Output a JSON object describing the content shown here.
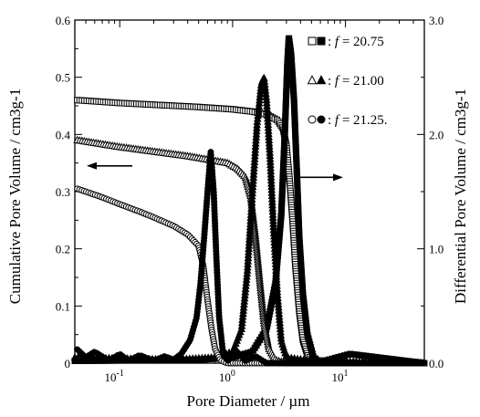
{
  "chart_data": {
    "type": "scatter",
    "x_scale": "log",
    "xlim": [
      0.04,
      50
    ],
    "xlabel": "Pore Diameter / µm",
    "ylabel_left": "Cumulative Pore Volume / cm3g-1",
    "ylabel_right": "Differential Pore Volume / cm3g-1",
    "ylim_left": [
      0,
      0.6
    ],
    "ylim_right": [
      0,
      3.0
    ],
    "x_ticks": [
      {
        "value": 0.1,
        "label": "10-1"
      },
      {
        "value": 1,
        "label": "100"
      },
      {
        "value": 10,
        "label": "101"
      }
    ],
    "y_ticks_left": [
      "0",
      "0.1",
      "0.2",
      "0.3",
      "0.4",
      "0.5",
      "0.6"
    ],
    "y_ticks_right": [
      "0.0",
      "1.0",
      "2.0",
      "3.0"
    ],
    "legend": [
      {
        "symbols": "open-square,filled-square",
        "f_label": "f",
        "value_text": " = 20.75"
      },
      {
        "symbols": "open-triangle,filled-triangle",
        "f_label": "f",
        "value_text": " = 21.00"
      },
      {
        "symbols": "open-circle,filled-circle",
        "f_label": "f",
        "value_text": " = 21.25."
      }
    ],
    "series": [
      {
        "f": 20.75,
        "marker": "square",
        "kind": "cumulative",
        "axis": "left",
        "points": [
          [
            0.042,
            0.46
          ],
          [
            0.06,
            0.458
          ],
          [
            0.1,
            0.455
          ],
          [
            0.2,
            0.452
          ],
          [
            0.5,
            0.448
          ],
          [
            1.0,
            0.444
          ],
          [
            1.5,
            0.44
          ],
          [
            2.0,
            0.435
          ],
          [
            2.5,
            0.425
          ],
          [
            2.8,
            0.41
          ],
          [
            3.0,
            0.38
          ],
          [
            3.2,
            0.32
          ],
          [
            3.4,
            0.25
          ],
          [
            3.6,
            0.17
          ],
          [
            3.9,
            0.09
          ],
          [
            4.2,
            0.04
          ],
          [
            4.6,
            0.015
          ],
          [
            5.2,
            0.003
          ],
          [
            6.0,
            0.0
          ],
          [
            50,
            0.0
          ]
        ]
      },
      {
        "f": 20.75,
        "marker": "square",
        "kind": "differential",
        "axis": "right",
        "points": [
          [
            0.04,
            0.02
          ],
          [
            0.5,
            0.03
          ],
          [
            1.0,
            0.05
          ],
          [
            1.5,
            0.1
          ],
          [
            2.0,
            0.3
          ],
          [
            2.4,
            0.7
          ],
          [
            2.7,
            1.3
          ],
          [
            2.9,
            2.0
          ],
          [
            3.05,
            2.6
          ],
          [
            3.15,
            2.85
          ],
          [
            3.3,
            2.7
          ],
          [
            3.5,
            2.3
          ],
          [
            3.7,
            1.7
          ],
          [
            3.9,
            1.1
          ],
          [
            4.2,
            0.6
          ],
          [
            4.6,
            0.25
          ],
          [
            5.2,
            0.05
          ],
          [
            6.0,
            0.01
          ],
          [
            11,
            0.08
          ],
          [
            50,
            0.0
          ]
        ]
      },
      {
        "f": 21.0,
        "marker": "triangle",
        "kind": "cumulative",
        "axis": "left",
        "points": [
          [
            0.042,
            0.39
          ],
          [
            0.06,
            0.385
          ],
          [
            0.1,
            0.378
          ],
          [
            0.2,
            0.37
          ],
          [
            0.4,
            0.362
          ],
          [
            0.6,
            0.356
          ],
          [
            0.9,
            0.35
          ],
          [
            1.1,
            0.34
          ],
          [
            1.3,
            0.325
          ],
          [
            1.45,
            0.29
          ],
          [
            1.6,
            0.22
          ],
          [
            1.75,
            0.14
          ],
          [
            1.9,
            0.07
          ],
          [
            2.1,
            0.025
          ],
          [
            2.4,
            0.005
          ],
          [
            3.0,
            0.0
          ],
          [
            50,
            0.0
          ]
        ]
      },
      {
        "f": 21.0,
        "marker": "triangle",
        "kind": "differential",
        "axis": "right",
        "points": [
          [
            0.04,
            0.05
          ],
          [
            0.3,
            0.03
          ],
          [
            0.7,
            0.05
          ],
          [
            1.0,
            0.1
          ],
          [
            1.2,
            0.3
          ],
          [
            1.35,
            0.8
          ],
          [
            1.5,
            1.5
          ],
          [
            1.65,
            2.1
          ],
          [
            1.8,
            2.45
          ],
          [
            1.9,
            2.5
          ],
          [
            2.0,
            2.3
          ],
          [
            2.15,
            1.8
          ],
          [
            2.3,
            1.2
          ],
          [
            2.5,
            0.6
          ],
          [
            2.7,
            0.2
          ],
          [
            3.0,
            0.05
          ],
          [
            5.0,
            0.02
          ],
          [
            50,
            0.0
          ]
        ]
      },
      {
        "f": 21.25,
        "marker": "circle",
        "kind": "cumulative",
        "axis": "left",
        "points": [
          [
            0.042,
            0.305
          ],
          [
            0.05,
            0.3
          ],
          [
            0.07,
            0.29
          ],
          [
            0.1,
            0.278
          ],
          [
            0.15,
            0.265
          ],
          [
            0.2,
            0.255
          ],
          [
            0.3,
            0.24
          ],
          [
            0.4,
            0.225
          ],
          [
            0.5,
            0.205
          ],
          [
            0.55,
            0.17
          ],
          [
            0.6,
            0.11
          ],
          [
            0.65,
            0.06
          ],
          [
            0.7,
            0.025
          ],
          [
            0.78,
            0.005
          ],
          [
            0.9,
            0.0
          ],
          [
            50,
            0.0
          ]
        ]
      },
      {
        "f": 21.25,
        "marker": "circle",
        "kind": "differential",
        "axis": "right",
        "points": [
          [
            0.042,
            0.12
          ],
          [
            0.05,
            0.05
          ],
          [
            0.06,
            0.1
          ],
          [
            0.08,
            0.02
          ],
          [
            0.1,
            0.08
          ],
          [
            0.12,
            0.02
          ],
          [
            0.15,
            0.07
          ],
          [
            0.2,
            0.02
          ],
          [
            0.25,
            0.06
          ],
          [
            0.3,
            0.03
          ],
          [
            0.35,
            0.08
          ],
          [
            0.42,
            0.2
          ],
          [
            0.48,
            0.4
          ],
          [
            0.52,
            0.7
          ],
          [
            0.56,
            1.1
          ],
          [
            0.6,
            1.5
          ],
          [
            0.64,
            1.85
          ],
          [
            0.68,
            1.5
          ],
          [
            0.72,
            0.9
          ],
          [
            0.76,
            0.4
          ],
          [
            0.82,
            0.1
          ],
          [
            0.9,
            0.02
          ],
          [
            1.1,
            0.1
          ],
          [
            1.3,
            0.02
          ],
          [
            1.6,
            0.06
          ],
          [
            2.0,
            0.0
          ],
          [
            50,
            0.0
          ]
        ]
      }
    ],
    "arrows": [
      {
        "direction": "left",
        "points_to_axis": "left"
      },
      {
        "direction": "right",
        "points_to_axis": "right"
      }
    ]
  }
}
